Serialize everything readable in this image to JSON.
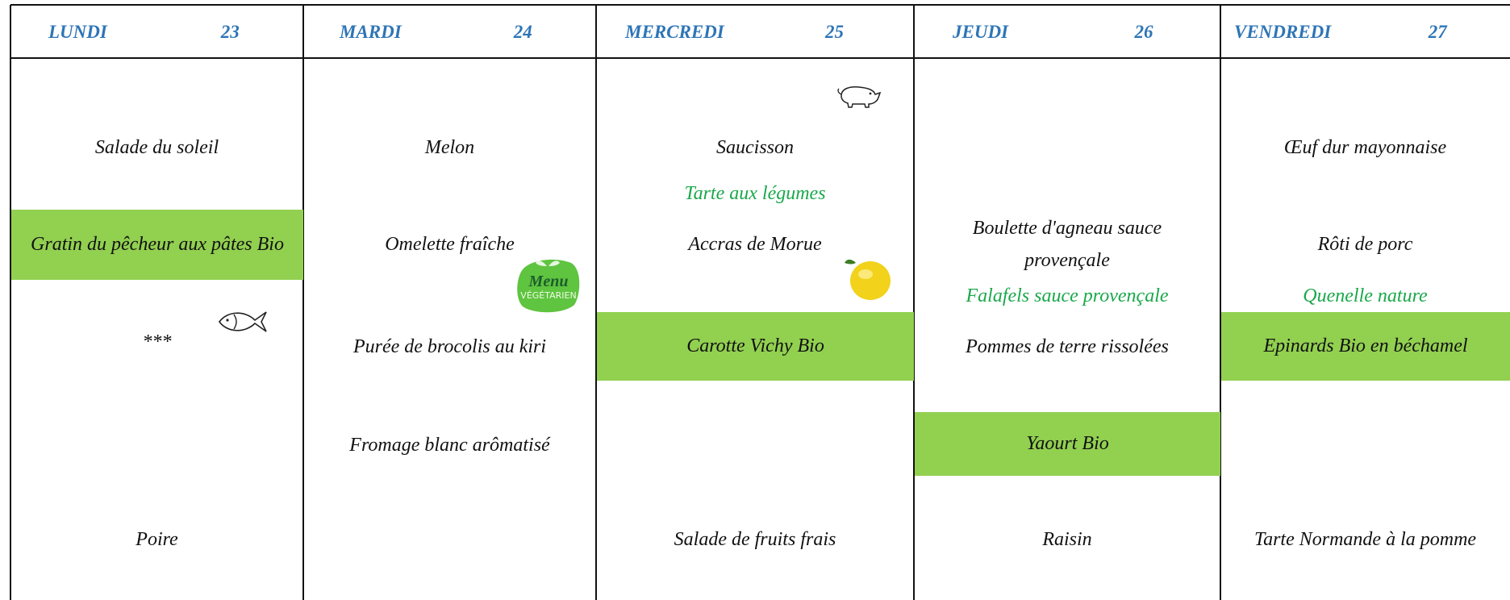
{
  "days": [
    {
      "name": "LUNDI",
      "date": "23",
      "items": [
        "Salade du soleil",
        "Gratin du pêcheur aux pâtes Bio",
        "***",
        "Poire"
      ]
    },
    {
      "name": "MARDI",
      "date": "24",
      "items": [
        "Melon",
        "Omelette fraîche",
        "Purée de brocolis au kiri",
        "Fromage blanc arômatisé"
      ]
    },
    {
      "name": "MERCREDI",
      "date": "25",
      "items": [
        "Saucisson",
        "Tarte aux légumes",
        "Accras de Morue",
        "Carotte Vichy Bio",
        "Salade de fruits frais"
      ]
    },
    {
      "name": "JEUDI",
      "date": "26",
      "items": [
        "Boulette d'agneau sauce provençale",
        "Falafels sauce provençale",
        "Pommes de terre rissolées",
        "Yaourt Bio",
        "Raisin"
      ]
    },
    {
      "name": "VENDREDI",
      "date": "27",
      "items": [
        "Œuf dur mayonnaise",
        "Rôti de porc",
        "Quenelle nature",
        "Epinards Bio en béchamel",
        "Tarte Normande à la pomme"
      ]
    }
  ],
  "badge": {
    "line1": "Menu",
    "line2": "VÉGÉTARIEN"
  }
}
